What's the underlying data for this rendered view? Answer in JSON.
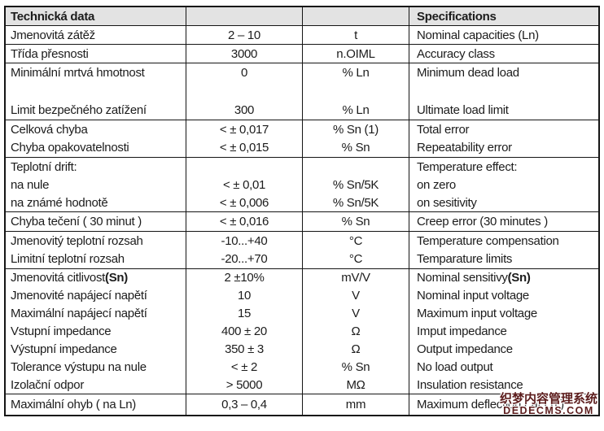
{
  "colors": {
    "border": "#151515",
    "header_bg": "#e3e3e3",
    "watermark": "#5c1d1d"
  },
  "header": {
    "title_cs": "Technická data",
    "title_en": "Specifications"
  },
  "lines": [
    {
      "label": "Jmenovitá zátěž",
      "value": "2 – 10",
      "unit": "t",
      "spec": "Nominal capacities (Ln)"
    },
    {
      "label": "Třída přesnosti",
      "value": "3000",
      "unit": "n.OIML",
      "spec": "Accuracy class"
    },
    {
      "label": "Minimální mrtvá hmotnost",
      "value": "0",
      "unit": "% Ln",
      "spec": "Minimum dead load"
    },
    {
      "label": "",
      "value": "",
      "unit": "",
      "spec": ""
    },
    {
      "label": "Limit bezpečného zatížení",
      "value": "300",
      "unit": "% Ln",
      "spec": "Ultimate load limit"
    },
    {
      "label": "Celková chyba",
      "value": "< ± 0,017",
      "unit": "% Sn (1)",
      "spec": "Total error"
    },
    {
      "label": "Chyba opakovatelnosti",
      "value": "< ± 0,015",
      "unit": "% Sn",
      "spec": "Repeatability error"
    },
    {
      "label": "Teplotní drift:",
      "value": "",
      "unit": "",
      "spec": "Temperature effect:"
    },
    {
      "label": "na nule",
      "value": "< ± 0,01",
      "unit": "% Sn/5K",
      "spec": "on zero"
    },
    {
      "label": "na známé hodnotě",
      "value": "< ± 0,006",
      "unit": "% Sn/5K",
      "spec": "on sesitivity"
    },
    {
      "label": "Chyba tečení ( 30 minut )",
      "value": "< ± 0,016",
      "unit": "% Sn",
      "spec": "Creep error (30 minutes )"
    },
    {
      "label": "Jmenovitý teplotní rozsah",
      "value": "-10...+40",
      "unit": "°C",
      "spec": "Temperature compensation"
    },
    {
      "label": "Limitní teplotní rozsah",
      "value": "-20...+70",
      "unit": "°C",
      "spec": "Temparature limits"
    },
    {
      "label_pre": "Jmenovitá citlivost ",
      "label_bold": "(Sn)",
      "value": "2 ±10%",
      "unit": "mV/V",
      "spec_pre": "Nominal sensitivy ",
      "spec_bold": "(Sn)"
    },
    {
      "label": "Jmenovité napájecí napětí",
      "value": "10",
      "unit": "V",
      "spec": "Nominal input voltage"
    },
    {
      "label": "Maximální napájecí napětí",
      "value": "15",
      "unit": "V",
      "spec": "Maximum input voltage"
    },
    {
      "label": "Vstupní impedance",
      "value": "400 ± 20",
      "unit": "Ω",
      "spec": "Imput impedance"
    },
    {
      "label": "Výstupní impedance",
      "value": "350 ± 3",
      "unit": "Ω",
      "spec": "Output impedance"
    },
    {
      "label": "Tolerance výstupu na nule",
      "value": "< ± 2",
      "unit": "% Sn",
      "spec": "No load output"
    },
    {
      "label": "Izolační odpor",
      "value": "> 5000",
      "unit": "MΩ",
      "spec": "Insulation resistance"
    },
    {
      "label": "Maximální ohyb ( na Ln)",
      "value": "0,3 – 0,4",
      "unit": "mm",
      "spec": "Maximum deflection ( at Ln )"
    }
  ],
  "watermark": {
    "line1": "织梦内容管理系统",
    "line2": "DEDECMS.COM"
  }
}
